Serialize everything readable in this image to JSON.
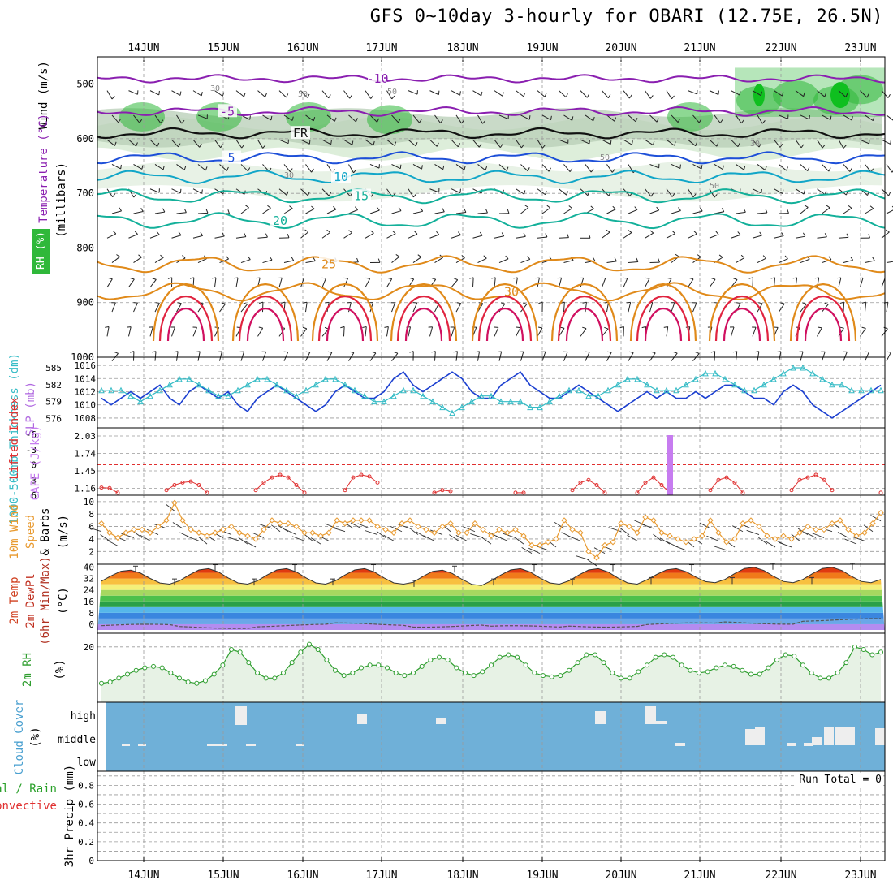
{
  "title": "GFS 0~10day 3-hourly for OBARI (12.75E, 26.5N)",
  "dates": [
    "14JUN",
    "15JUN",
    "16JUN",
    "17JUN",
    "18JUN",
    "19JUN",
    "20JUN",
    "21JUN",
    "22JUN",
    "23JUN"
  ],
  "colors": {
    "rh_green": "#2fb83a",
    "rh_light": "#d9ecd6",
    "temp_purple": "#8a1fb0",
    "temp_blue": "#1d4fd8",
    "temp_cyan": "#11a6c8",
    "temp_teal": "#13b09a",
    "temp_orange": "#e08a1a",
    "temp_red": "#e0233f",
    "slp_blue": "#1b3fd0",
    "thick_cyan": "#36bcc6",
    "li_red": "#e03030",
    "cape_purple": "#c77cf0",
    "wind_orange": "#e89a30",
    "rh2m_green": "#2f9e2f",
    "cloud_blue": "#6fb0d8"
  },
  "panel_labels": {
    "upper": {
      "rh": "RH (%)",
      "temp": "Temperature (°C)",
      "wind": "Wind (m/s)",
      "mb": "(millibars)"
    },
    "slp": {
      "thick": "1000-500mb Thickness (dm)",
      "slp": "SLP (mb)"
    },
    "li": {
      "li": "Lifted Index",
      "cape": "CAPE (J/kg)"
    },
    "wind10": {
      "a": "10m Wind",
      "b": "Speed",
      "c": "& Barbs",
      "unit": "(m/s)"
    },
    "temp2m": {
      "a": "2m Temp",
      "b": "2m DewPt",
      "c": "(6hr Min/Max)",
      "unit": "(°C)"
    },
    "rh2m": {
      "a": "2m RH",
      "unit": "(%)"
    },
    "cloud": {
      "a": "Cloud Cover",
      "unit": "(%)",
      "high": "high",
      "middle": "middle",
      "low": "low"
    },
    "precip": {
      "a": "Total / Rain",
      "b": "Convective",
      "c": "3hr Precip (mm)",
      "run_total": "Run Total = 0"
    }
  },
  "chart_data": [
    {
      "type": "contour",
      "name": "upper-air",
      "ylabel": "(millibars)",
      "y_ticks": [
        "500",
        "600",
        "700",
        "800",
        "900",
        "1000"
      ],
      "ylim": [
        450,
        1000
      ],
      "temperature_contours": [
        {
          "value": "-10",
          "level_mb": 490
        },
        {
          "value": "-5",
          "level_mb": 550
        },
        {
          "value": "FR",
          "level_mb": 590
        },
        {
          "value": "5",
          "level_mb": 635
        },
        {
          "value": "10",
          "level_mb": 670
        },
        {
          "value": "15",
          "level_mb": 705
        },
        {
          "value": "20",
          "level_mb": 750
        },
        {
          "value": "25",
          "level_mb": 830
        },
        {
          "value": "30",
          "level_mb": 880
        }
      ],
      "rh_labels": [
        "30",
        "50",
        "50",
        "30",
        "50",
        "30",
        "50"
      ]
    },
    {
      "type": "line",
      "name": "slp-thickness",
      "left_ticks": [
        "585",
        "582",
        "579",
        "576"
      ],
      "right_ticks": [
        "1016",
        "1014",
        "1012",
        "1010",
        "1008"
      ],
      "slp_mb": [
        1011,
        1010,
        1011,
        1012,
        1011,
        1012,
        1013,
        1011,
        1010,
        1012,
        1013,
        1012,
        1011,
        1012,
        1010,
        1009,
        1011,
        1012,
        1013,
        1012,
        1011,
        1010,
        1009,
        1010,
        1012,
        1013,
        1012,
        1011,
        1011,
        1012,
        1014,
        1015,
        1013,
        1012,
        1013,
        1014,
        1015,
        1014,
        1012,
        1011,
        1011,
        1013,
        1014,
        1015,
        1013,
        1012,
        1011,
        1011,
        1012,
        1013,
        1012,
        1011,
        1010,
        1009,
        1010,
        1011,
        1012,
        1011,
        1012,
        1011,
        1011,
        1012,
        1011,
        1012,
        1013,
        1013,
        1012,
        1011,
        1011,
        1010,
        1012,
        1013,
        1012,
        1010,
        1009,
        1008,
        1009,
        1010,
        1011,
        1012,
        1013
      ],
      "thickness_dm": [
        581,
        581,
        581,
        580,
        579,
        580,
        581,
        582,
        583,
        583,
        582,
        581,
        580,
        580,
        581,
        582,
        583,
        583,
        582,
        581,
        580,
        581,
        582,
        583,
        583,
        582,
        581,
        580,
        579,
        579,
        580,
        581,
        581,
        580,
        579,
        578,
        577,
        578,
        579,
        580,
        580,
        579,
        579,
        579,
        578,
        578,
        579,
        580,
        581,
        581,
        580,
        580,
        581,
        582,
        583,
        583,
        582,
        581,
        581,
        581,
        582,
        583,
        584,
        584,
        583,
        582,
        581,
        581,
        582,
        583,
        584,
        585,
        585,
        584,
        583,
        582,
        582,
        581,
        581,
        581,
        581
      ]
    },
    {
      "type": "line",
      "name": "lifted-index-cape",
      "li_ticks": [
        "-6",
        "-3",
        "0",
        "3",
        "6"
      ],
      "cape_ticks": [
        "2.03",
        "1.74",
        "1.45",
        "1.16"
      ],
      "li": [
        4.5,
        4.6,
        5.5,
        6,
        6,
        6,
        6,
        6,
        5,
        4,
        3.5,
        3.3,
        4,
        5.5,
        6,
        6,
        6,
        6,
        6,
        5,
        3.5,
        2.5,
        2,
        2.5,
        4,
        5.5,
        6,
        6,
        6,
        6,
        5,
        2.5,
        2,
        2.3,
        3.5,
        6,
        6,
        6,
        6,
        6,
        6,
        5.5,
        5,
        5.2,
        6,
        6,
        6,
        6,
        6,
        6,
        6,
        5.5,
        5.5,
        6,
        6,
        6,
        6,
        6,
        5,
        3.5,
        3,
        4,
        5.5,
        6,
        6,
        6,
        5.5,
        3.5,
        2.5,
        4,
        5.5,
        6,
        6,
        6,
        6,
        5,
        3,
        2.5,
        3.5,
        5.5,
        6,
        6,
        6,
        6,
        6,
        5,
        3,
        2.5,
        2,
        3,
        5,
        6,
        6,
        6,
        6,
        6,
        5.5
      ],
      "cape": [
        {
          "day": "20JUN",
          "value": 2.03
        }
      ]
    },
    {
      "type": "line",
      "name": "wind-10m",
      "ylabel": "(m/s)",
      "y_ticks": [
        "10",
        "8",
        "6",
        "4",
        "2"
      ],
      "speed_ms": [
        6.5,
        5,
        4.2,
        5,
        5.5,
        5.5,
        5,
        6,
        7,
        9.8,
        7,
        5.5,
        5,
        4.5,
        5,
        5.5,
        6,
        5,
        4.5,
        4,
        5.5,
        7,
        6.5,
        6.5,
        6,
        5,
        5,
        4.5,
        5,
        7,
        6.5,
        7,
        7,
        7,
        6,
        5.5,
        5,
        6.5,
        7,
        6,
        5.5,
        5,
        6,
        6.5,
        5,
        5,
        6.5,
        5.5,
        4.5,
        5.5,
        5,
        5.5,
        4.5,
        3,
        3,
        3.5,
        4,
        7,
        5.5,
        5,
        2,
        1,
        3,
        3.5,
        6.5,
        6,
        5,
        7.5,
        7,
        5,
        4.5,
        4,
        3.5,
        4,
        4.5,
        7,
        5,
        3.5,
        4,
        6.5,
        7,
        6,
        4.5,
        4,
        4.5,
        4,
        5,
        6,
        5.5,
        5.5,
        6.5,
        7,
        5.5,
        4.5,
        5,
        6.5,
        8.2
      ]
    },
    {
      "type": "area",
      "name": "temp-2m",
      "ylabel": "(°C)",
      "y_ticks": [
        "40",
        "32",
        "24",
        "16",
        "8",
        "0"
      ],
      "ylim": [
        -4,
        42
      ],
      "daily_max_c": [
        38,
        39,
        39,
        39,
        38,
        39,
        39,
        39,
        40,
        40
      ],
      "daily_min_c": [
        28,
        28,
        28,
        28,
        27,
        28,
        28,
        29,
        29,
        29
      ],
      "dewpoint_c": [
        -1,
        -2,
        -1,
        0,
        -1,
        -2,
        -1,
        0,
        1,
        3
      ]
    },
    {
      "type": "line",
      "name": "rh-2m",
      "ylabel": "(%)",
      "y_ticks": [
        "20"
      ],
      "values": [
        6,
        6.5,
        8,
        9.5,
        11,
        12,
        12.5,
        12,
        10,
        8,
        6.5,
        6,
        7,
        9.5,
        13,
        19,
        18,
        14,
        10,
        8,
        8,
        10,
        14,
        18,
        21,
        19,
        15,
        11,
        9,
        10,
        12,
        13,
        13,
        12,
        10,
        9,
        10,
        12.5,
        15,
        16,
        15,
        12,
        10,
        9,
        10.5,
        13,
        16,
        17,
        16,
        13,
        10,
        9,
        8.5,
        9,
        11,
        14,
        17,
        17,
        14,
        10,
        8,
        8,
        10.5,
        13,
        16,
        17,
        16,
        13,
        11,
        10,
        10.5,
        12,
        13,
        12.5,
        11,
        9.5,
        9.5,
        12,
        15,
        17,
        16.5,
        13,
        10,
        8,
        8,
        10,
        14,
        20,
        19,
        17,
        18
      ]
    },
    {
      "type": "bar",
      "name": "cloud-cover",
      "layers": [
        "high",
        "middle",
        "low"
      ]
    },
    {
      "type": "bar",
      "name": "precip-3hr",
      "ylabel": "3hr Precip (mm)",
      "y_ticks": [
        "0.8",
        "0.6",
        "0.4",
        "0.2",
        "0"
      ],
      "ylim": [
        0,
        0.95
      ],
      "values": []
    }
  ]
}
